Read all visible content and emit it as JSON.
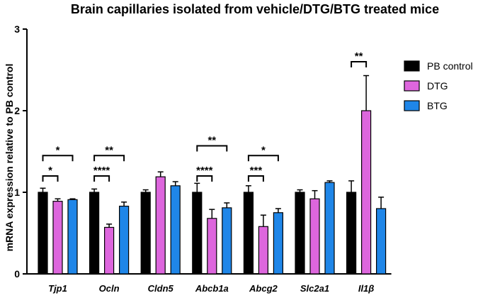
{
  "chart_data": {
    "type": "bar",
    "title": "Brain capillaries isolated from vehicle/DTG/BTG treated mice",
    "ylabel": "mRNA expression relative to PB control",
    "xlabel": "",
    "ylim": [
      0,
      3
    ],
    "yticks": [
      "0",
      "1",
      "2",
      "3"
    ],
    "categories": [
      "Tjp1",
      "Ocln",
      "Cldn5",
      "Abcb1a",
      "Abcg2",
      "Slc2a1",
      "Il1β"
    ],
    "series": [
      {
        "name": "PB control",
        "color": "#000000",
        "values": [
          1.0,
          1.0,
          1.0,
          1.0,
          1.0,
          1.0,
          1.0
        ],
        "errors": [
          0.05,
          0.04,
          0.03,
          0.11,
          0.08,
          0.03,
          0.14
        ]
      },
      {
        "name": "DTG",
        "color": "#dd66dd",
        "values": [
          0.89,
          0.57,
          1.19,
          0.68,
          0.58,
          0.92,
          2.0
        ],
        "errors": [
          0.03,
          0.04,
          0.06,
          0.11,
          0.14,
          0.1,
          0.43
        ]
      },
      {
        "name": "BTG",
        "color": "#1f86e8",
        "values": [
          0.91,
          0.83,
          1.08,
          0.81,
          0.75,
          1.12,
          0.8
        ],
        "errors": [
          0.01,
          0.05,
          0.05,
          0.06,
          0.05,
          0.02,
          0.14
        ]
      }
    ],
    "legend_position": "top-right",
    "significance": [
      {
        "category": 0,
        "from": 0,
        "to": 1,
        "label": "*",
        "level": 1.2
      },
      {
        "category": 0,
        "from": 0,
        "to": 2,
        "label": "*",
        "level": 1.45
      },
      {
        "category": 1,
        "from": 0,
        "to": 1,
        "label": "****",
        "level": 1.2
      },
      {
        "category": 1,
        "from": 0,
        "to": 2,
        "label": "**",
        "level": 1.45
      },
      {
        "category": 3,
        "from": 0,
        "to": 1,
        "label": "****",
        "level": 1.2
      },
      {
        "category": 3,
        "from": 0,
        "to": 2,
        "label": "**",
        "level": 1.57
      },
      {
        "category": 4,
        "from": 0,
        "to": 1,
        "label": "***",
        "level": 1.2
      },
      {
        "category": 4,
        "from": 0,
        "to": 2,
        "label": "*",
        "level": 1.45
      },
      {
        "category": 6,
        "from": 0,
        "to": 1,
        "label": "**",
        "level": 2.6
      }
    ]
  }
}
